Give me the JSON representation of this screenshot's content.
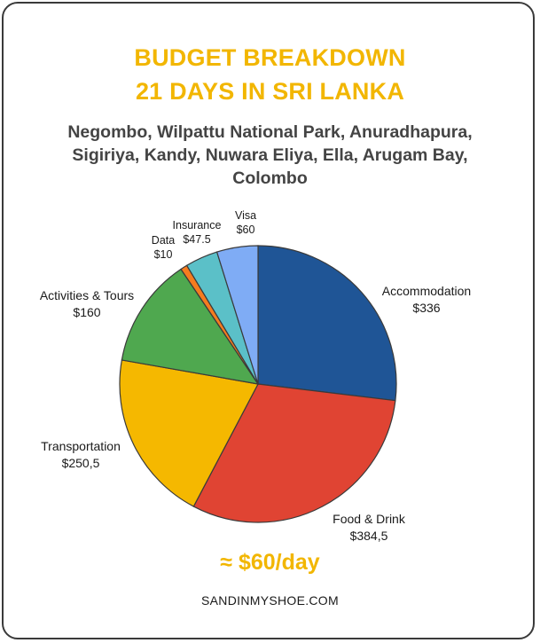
{
  "header": {
    "title_line1": "BUDGET BREAKDOWN",
    "title_line2": "21 DAYS IN SRI LANKA",
    "subtitle_line1": "Negombo, Wilpattu National Park, Anuradhapura,",
    "subtitle_line2": "Sigiriya, Kandy, Nuwara Eliya, Ella, Arugam Bay,",
    "subtitle_line3": "Colombo"
  },
  "chart_data": {
    "type": "pie",
    "title": "BUDGET BREAKDOWN 21 DAYS IN SRI LANKA",
    "slices": [
      {
        "label": "Accommodation",
        "value_label": "$336",
        "value": 336,
        "color": "#1f5596"
      },
      {
        "label": "Food & Drink",
        "value_label": "$384,5",
        "value": 384.5,
        "color": "#e04433"
      },
      {
        "label": "Transportation",
        "value_label": "$250,5",
        "value": 250.5,
        "color": "#f5b800"
      },
      {
        "label": "Activities & Tours",
        "value_label": "$160",
        "value": 160,
        "color": "#4fa84f"
      },
      {
        "label": "Data",
        "value_label": "$10",
        "value": 10,
        "color": "#f57c1f"
      },
      {
        "label": "Insurance",
        "value_label": "$47.5",
        "value": 47.5,
        "color": "#5bc0c8"
      },
      {
        "label": "Visa",
        "value_label": "$60",
        "value": 60,
        "color": "#7facf5"
      }
    ]
  },
  "footer": {
    "per_day": "≈ $60/day",
    "website": "SANDINMYSHOE.COM"
  }
}
